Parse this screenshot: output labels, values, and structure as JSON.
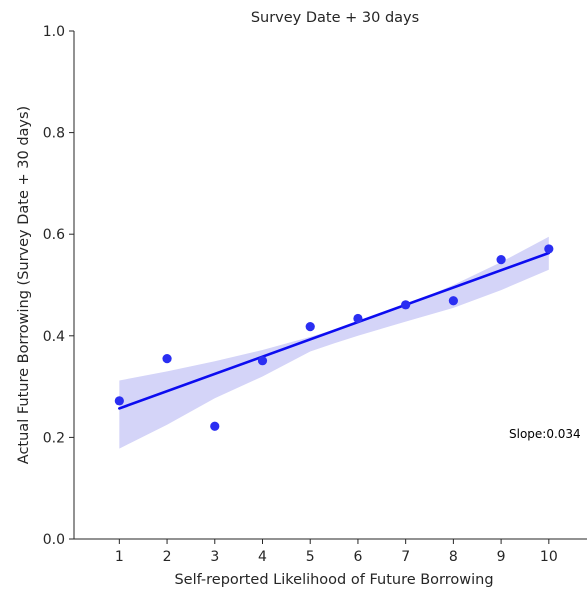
{
  "chart_data": {
    "type": "scatter",
    "title": "Survey Date + 30 days",
    "xlabel": "Self-reported Likelihood of Future Borrowing",
    "ylabel": "Actual Future Borrowing (Survey Date + 30 days)",
    "xlim": [
      0.05,
      10.8
    ],
    "ylim": [
      0.0,
      1.0
    ],
    "xticks": [
      1,
      2,
      3,
      4,
      5,
      6,
      7,
      8,
      9,
      10
    ],
    "yticks": [
      "0.0",
      "0.2",
      "0.4",
      "0.6",
      "0.8",
      "1.0"
    ],
    "grid": false,
    "points": [
      {
        "x": 1,
        "y": 0.272
      },
      {
        "x": 2,
        "y": 0.355
      },
      {
        "x": 3,
        "y": 0.222
      },
      {
        "x": 4,
        "y": 0.351
      },
      {
        "x": 5,
        "y": 0.418
      },
      {
        "x": 6,
        "y": 0.434
      },
      {
        "x": 7,
        "y": 0.461
      },
      {
        "x": 8,
        "y": 0.469
      },
      {
        "x": 9,
        "y": 0.55
      },
      {
        "x": 10,
        "y": 0.571
      }
    ],
    "regression": {
      "x": [
        1,
        10
      ],
      "y": [
        0.257,
        0.563
      ]
    },
    "confidence_band": {
      "x": [
        1,
        2,
        3,
        4,
        5,
        5.5,
        6,
        7,
        8,
        9,
        10
      ],
      "upper": [
        0.312,
        0.33,
        0.35,
        0.372,
        0.398,
        0.412,
        0.425,
        0.46,
        0.5,
        0.545,
        0.595
      ],
      "lower": [
        0.178,
        0.225,
        0.277,
        0.32,
        0.369,
        0.385,
        0.4,
        0.428,
        0.455,
        0.49,
        0.53
      ]
    },
    "annotation": "Slope:0.034",
    "colors": {
      "points": "#2a2ef2",
      "line": "#0c0cf0",
      "band": "#d4d4f8",
      "axis": "#262626"
    }
  }
}
